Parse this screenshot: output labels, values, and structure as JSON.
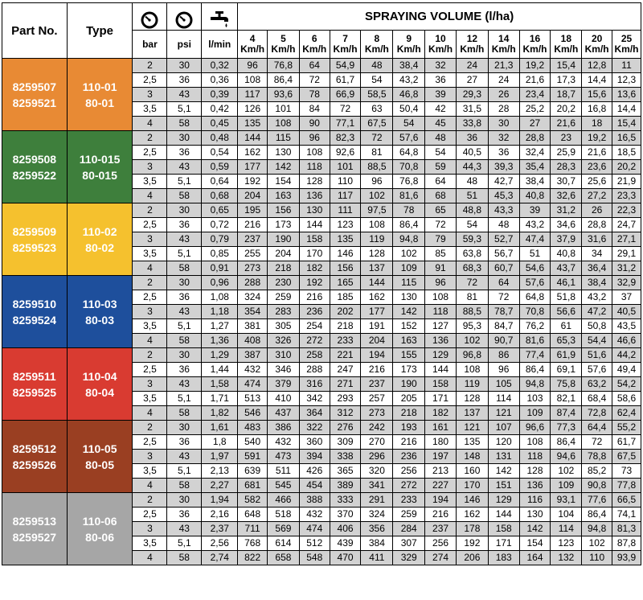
{
  "header": {
    "part_no": "Part No.",
    "type": "Type",
    "bar": "bar",
    "psi": "psi",
    "lmin": "l/min",
    "spraying_volume": "SPRAYING VOLUME (l/ha)",
    "speed_unit": "Km/h",
    "speeds": [
      "4",
      "5",
      "6",
      "7",
      "8",
      "9",
      "10",
      "12",
      "14",
      "16",
      "18",
      "20",
      "25"
    ],
    "icons": [
      "pressure-gauge-icon",
      "pressure-gauge-icon",
      "water-tap-icon"
    ]
  },
  "colors": {
    "orange": "#e88a34",
    "green": "#3e7f3c",
    "yellow": "#f5c12e",
    "blue": "#1e4f9c",
    "red": "#d93b31",
    "brown": "#9a3f22",
    "gray": "#a6a6a6",
    "row_gray": "#d2d2d2"
  },
  "groups": [
    {
      "color_key": "orange",
      "part_nos": [
        "8259507",
        "8259521"
      ],
      "types": [
        "110-01",
        "80-01"
      ],
      "rows": [
        [
          "2",
          "30",
          "0,32",
          "96",
          "76,8",
          "64",
          "54,9",
          "48",
          "38,4",
          "32",
          "24",
          "21,3",
          "19,2",
          "15,4",
          "12,8",
          "11"
        ],
        [
          "2,5",
          "36",
          "0,36",
          "108",
          "86,4",
          "72",
          "61,7",
          "54",
          "43,2",
          "36",
          "27",
          "24",
          "21,6",
          "17,3",
          "14,4",
          "12,3"
        ],
        [
          "3",
          "43",
          "0,39",
          "117",
          "93,6",
          "78",
          "66,9",
          "58,5",
          "46,8",
          "39",
          "29,3",
          "26",
          "23,4",
          "18,7",
          "15,6",
          "13,6"
        ],
        [
          "3,5",
          "5,1",
          "0,42",
          "126",
          "101",
          "84",
          "72",
          "63",
          "50,4",
          "42",
          "31,5",
          "28",
          "25,2",
          "20,2",
          "16,8",
          "14,4"
        ],
        [
          "4",
          "58",
          "0,45",
          "135",
          "108",
          "90",
          "77,1",
          "67,5",
          "54",
          "45",
          "33,8",
          "30",
          "27",
          "21,6",
          "18",
          "15,4"
        ]
      ]
    },
    {
      "color_key": "green",
      "part_nos": [
        "8259508",
        "8259522"
      ],
      "types": [
        "110-015",
        "80-015"
      ],
      "rows": [
        [
          "2",
          "30",
          "0,48",
          "144",
          "115",
          "96",
          "82,3",
          "72",
          "57,6",
          "48",
          "36",
          "32",
          "28,8",
          "23",
          "19,2",
          "16,5"
        ],
        [
          "2,5",
          "36",
          "0,54",
          "162",
          "130",
          "108",
          "92,6",
          "81",
          "64,8",
          "54",
          "40,5",
          "36",
          "32,4",
          "25,9",
          "21,6",
          "18,5"
        ],
        [
          "3",
          "43",
          "0,59",
          "177",
          "142",
          "118",
          "101",
          "88,5",
          "70,8",
          "59",
          "44,3",
          "39,3",
          "35,4",
          "28,3",
          "23,6",
          "20,2"
        ],
        [
          "3,5",
          "5,1",
          "0,64",
          "192",
          "154",
          "128",
          "110",
          "96",
          "76,8",
          "64",
          "48",
          "42,7",
          "38,4",
          "30,7",
          "25,6",
          "21,9"
        ],
        [
          "4",
          "58",
          "0,68",
          "204",
          "163",
          "136",
          "117",
          "102",
          "81,6",
          "68",
          "51",
          "45,3",
          "40,8",
          "32,6",
          "27,2",
          "23,3"
        ]
      ]
    },
    {
      "color_key": "yellow",
      "part_nos": [
        "8259509",
        "8259523"
      ],
      "types": [
        "110-02",
        "80-02"
      ],
      "rows": [
        [
          "2",
          "30",
          "0,65",
          "195",
          "156",
          "130",
          "111",
          "97,5",
          "78",
          "65",
          "48,8",
          "43,3",
          "39",
          "31,2",
          "26",
          "22,3"
        ],
        [
          "2,5",
          "36",
          "0,72",
          "216",
          "173",
          "144",
          "123",
          "108",
          "86,4",
          "72",
          "54",
          "48",
          "43,2",
          "34,6",
          "28,8",
          "24,7"
        ],
        [
          "3",
          "43",
          "0,79",
          "237",
          "190",
          "158",
          "135",
          "119",
          "94,8",
          "79",
          "59,3",
          "52,7",
          "47,4",
          "37,9",
          "31,6",
          "27,1"
        ],
        [
          "3,5",
          "5,1",
          "0,85",
          "255",
          "204",
          "170",
          "146",
          "128",
          "102",
          "85",
          "63,8",
          "56,7",
          "51",
          "40,8",
          "34",
          "29,1"
        ],
        [
          "4",
          "58",
          "0,91",
          "273",
          "218",
          "182",
          "156",
          "137",
          "109",
          "91",
          "68,3",
          "60,7",
          "54,6",
          "43,7",
          "36,4",
          "31,2"
        ]
      ]
    },
    {
      "color_key": "blue",
      "part_nos": [
        "8259510",
        "8259524"
      ],
      "types": [
        "110-03",
        "80-03"
      ],
      "rows": [
        [
          "2",
          "30",
          "0,96",
          "288",
          "230",
          "192",
          "165",
          "144",
          "115",
          "96",
          "72",
          "64",
          "57,6",
          "46,1",
          "38,4",
          "32,9"
        ],
        [
          "2,5",
          "36",
          "1,08",
          "324",
          "259",
          "216",
          "185",
          "162",
          "130",
          "108",
          "81",
          "72",
          "64,8",
          "51,8",
          "43,2",
          "37"
        ],
        [
          "3",
          "43",
          "1,18",
          "354",
          "283",
          "236",
          "202",
          "177",
          "142",
          "118",
          "88,5",
          "78,7",
          "70,8",
          "56,6",
          "47,2",
          "40,5"
        ],
        [
          "3,5",
          "5,1",
          "1,27",
          "381",
          "305",
          "254",
          "218",
          "191",
          "152",
          "127",
          "95,3",
          "84,7",
          "76,2",
          "61",
          "50,8",
          "43,5"
        ],
        [
          "4",
          "58",
          "1,36",
          "408",
          "326",
          "272",
          "233",
          "204",
          "163",
          "136",
          "102",
          "90,7",
          "81,6",
          "65,3",
          "54,4",
          "46,6"
        ]
      ]
    },
    {
      "color_key": "red",
      "part_nos": [
        "8259511",
        "8259525"
      ],
      "types": [
        "110-04",
        "80-04"
      ],
      "rows": [
        [
          "2",
          "30",
          "1,29",
          "387",
          "310",
          "258",
          "221",
          "194",
          "155",
          "129",
          "96,8",
          "86",
          "77,4",
          "61,9",
          "51,6",
          "44,2"
        ],
        [
          "2,5",
          "36",
          "1,44",
          "432",
          "346",
          "288",
          "247",
          "216",
          "173",
          "144",
          "108",
          "96",
          "86,4",
          "69,1",
          "57,6",
          "49,4"
        ],
        [
          "3",
          "43",
          "1,58",
          "474",
          "379",
          "316",
          "271",
          "237",
          "190",
          "158",
          "119",
          "105",
          "94,8",
          "75,8",
          "63,2",
          "54,2"
        ],
        [
          "3,5",
          "5,1",
          "1,71",
          "513",
          "410",
          "342",
          "293",
          "257",
          "205",
          "171",
          "128",
          "114",
          "103",
          "82,1",
          "68,4",
          "58,6"
        ],
        [
          "4",
          "58",
          "1,82",
          "546",
          "437",
          "364",
          "312",
          "273",
          "218",
          "182",
          "137",
          "121",
          "109",
          "87,4",
          "72,8",
          "62,4"
        ]
      ]
    },
    {
      "color_key": "brown",
      "part_nos": [
        "8259512",
        "8259526"
      ],
      "types": [
        "110-05",
        "80-05"
      ],
      "rows": [
        [
          "2",
          "30",
          "1,61",
          "483",
          "386",
          "322",
          "276",
          "242",
          "193",
          "161",
          "121",
          "107",
          "96,6",
          "77,3",
          "64,4",
          "55,2"
        ],
        [
          "2,5",
          "36",
          "1,8",
          "540",
          "432",
          "360",
          "309",
          "270",
          "216",
          "180",
          "135",
          "120",
          "108",
          "86,4",
          "72",
          "61,7"
        ],
        [
          "3",
          "43",
          "1,97",
          "591",
          "473",
          "394",
          "338",
          "296",
          "236",
          "197",
          "148",
          "131",
          "118",
          "94,6",
          "78,8",
          "67,5"
        ],
        [
          "3,5",
          "5,1",
          "2,13",
          "639",
          "511",
          "426",
          "365",
          "320",
          "256",
          "213",
          "160",
          "142",
          "128",
          "102",
          "85,2",
          "73"
        ],
        [
          "4",
          "58",
          "2,27",
          "681",
          "545",
          "454",
          "389",
          "341",
          "272",
          "227",
          "170",
          "151",
          "136",
          "109",
          "90,8",
          "77,8"
        ]
      ]
    },
    {
      "color_key": "gray",
      "part_nos": [
        "8259513",
        "8259527"
      ],
      "types": [
        "110-06",
        "80-06"
      ],
      "rows": [
        [
          "2",
          "30",
          "1,94",
          "582",
          "466",
          "388",
          "333",
          "291",
          "233",
          "194",
          "146",
          "129",
          "116",
          "93,1",
          "77,6",
          "66,5"
        ],
        [
          "2,5",
          "36",
          "2,16",
          "648",
          "518",
          "432",
          "370",
          "324",
          "259",
          "216",
          "162",
          "144",
          "130",
          "104",
          "86,4",
          "74,1"
        ],
        [
          "3",
          "43",
          "2,37",
          "711",
          "569",
          "474",
          "406",
          "356",
          "284",
          "237",
          "178",
          "158",
          "142",
          "114",
          "94,8",
          "81,3"
        ],
        [
          "3,5",
          "5,1",
          "2,56",
          "768",
          "614",
          "512",
          "439",
          "384",
          "307",
          "256",
          "192",
          "171",
          "154",
          "123",
          "102",
          "87,8"
        ],
        [
          "4",
          "58",
          "2,74",
          "822",
          "658",
          "548",
          "470",
          "411",
          "329",
          "274",
          "206",
          "183",
          "164",
          "132",
          "110",
          "93,9"
        ]
      ]
    }
  ]
}
